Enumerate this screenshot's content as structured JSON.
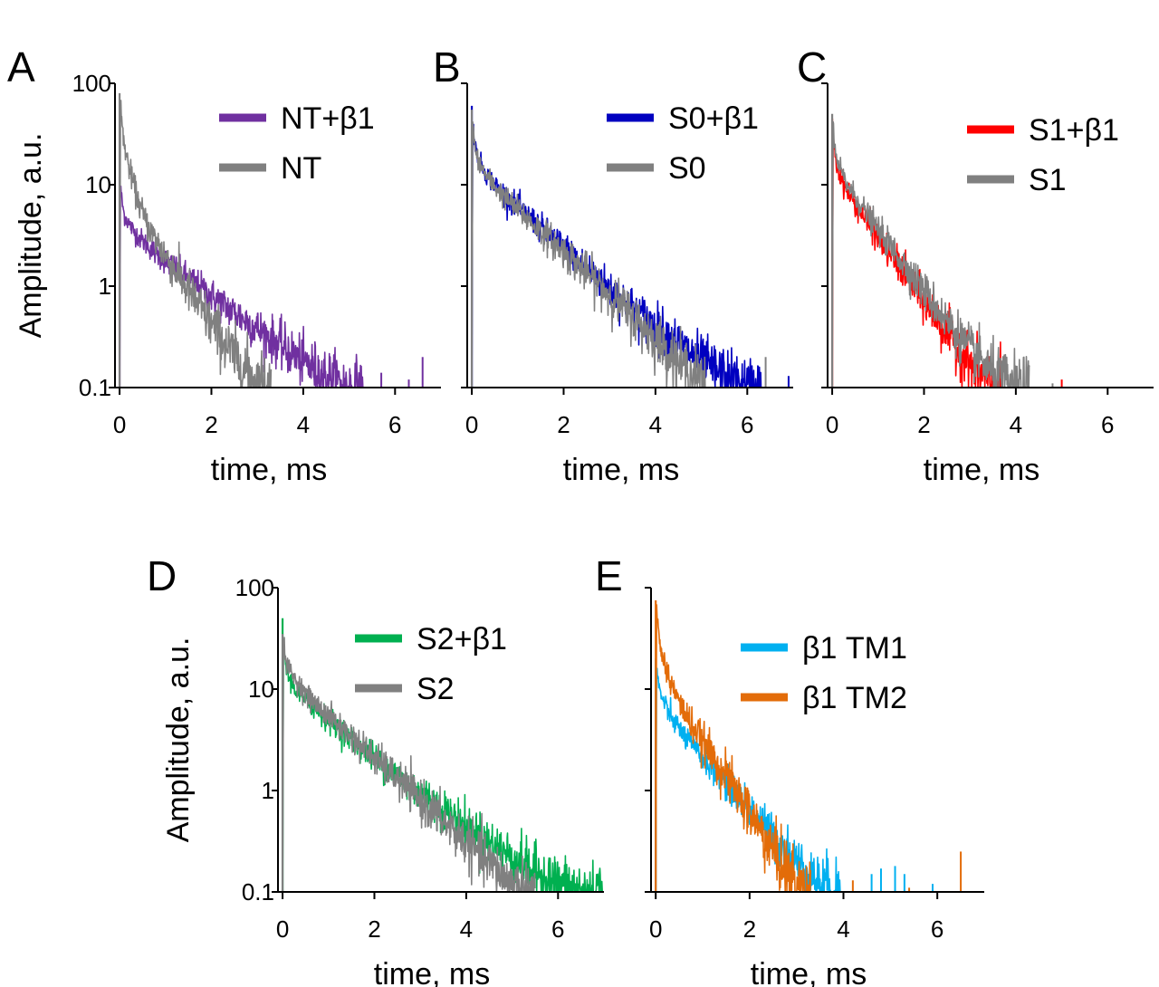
{
  "chart_data": [
    {
      "type": "line",
      "panel_label": "A",
      "xlabel": "time, ms",
      "ylabel": "Amplitude, a.u.",
      "yscale": "log",
      "xlim": [
        -0.1,
        7
      ],
      "ylim": [
        0.1,
        100
      ],
      "xticks": [
        "0",
        "2",
        "4",
        "6"
      ],
      "yticks": [
        "100",
        "10",
        "1",
        "0.1"
      ],
      "legend_position": "top-right",
      "series": [
        {
          "name": "NT+β1",
          "color": "#7030a0",
          "x": [
            0,
            0.05,
            0.1,
            0.3,
            0.5,
            0.8,
            1.2,
            1.6,
            2.0,
            2.5,
            3.0,
            3.5,
            4.0,
            4.5,
            5.0,
            5.3
          ],
          "y": [
            12,
            7,
            5,
            3.5,
            2.8,
            2.1,
            1.5,
            1.1,
            0.8,
            0.55,
            0.38,
            0.26,
            0.18,
            0.13,
            0.1,
            0.1
          ],
          "noise": 0.1,
          "spikes": [
            [
              5.7,
              0.14
            ],
            [
              6.3,
              0.12
            ],
            [
              6.6,
              0.2
            ]
          ]
        },
        {
          "name": "NT",
          "color": "#808080",
          "x": [
            0,
            0.05,
            0.1,
            0.2,
            0.4,
            0.6,
            0.8,
            1.0,
            1.5,
            2.0,
            2.5,
            3.0,
            3.3
          ],
          "y": [
            80,
            40,
            25,
            15,
            7,
            4,
            2.8,
            2,
            0.9,
            0.42,
            0.2,
            0.11,
            0.1
          ],
          "noise": 0.12,
          "spikes": []
        }
      ]
    },
    {
      "type": "line",
      "panel_label": "B",
      "xlabel": "time, ms",
      "ylabel": "",
      "yscale": "log",
      "xlim": [
        -0.1,
        7
      ],
      "ylim": [
        0.1,
        100
      ],
      "xticks": [
        "0",
        "2",
        "4",
        "6"
      ],
      "yticks": [],
      "legend_position": "top-right",
      "series": [
        {
          "name": "S0+β1",
          "color": "#0000c0",
          "x": [
            0,
            0.05,
            0.1,
            0.3,
            0.6,
            1.0,
            1.5,
            2.0,
            2.5,
            3.0,
            3.5,
            4.0,
            4.5,
            5.0,
            5.5,
            6.0,
            6.3
          ],
          "y": [
            60,
            30,
            20,
            13,
            9,
            6,
            3.8,
            2.4,
            1.5,
            0.95,
            0.6,
            0.4,
            0.27,
            0.18,
            0.13,
            0.1,
            0.1
          ],
          "noise": 0.1,
          "spikes": [
            [
              6.9,
              0.13
            ]
          ]
        },
        {
          "name": "S0",
          "color": "#808080",
          "x": [
            0,
            0.05,
            0.1,
            0.3,
            0.6,
            1.0,
            1.5,
            2.0,
            2.5,
            3.0,
            3.5,
            4.0,
            4.5,
            5.0,
            5.1
          ],
          "y": [
            55,
            28,
            19,
            12.5,
            8.5,
            5.7,
            3.5,
            2.2,
            1.35,
            0.82,
            0.5,
            0.3,
            0.18,
            0.11,
            0.1
          ],
          "noise": 0.1,
          "spikes": [
            [
              6.4,
              0.2
            ]
          ]
        }
      ]
    },
    {
      "type": "line",
      "panel_label": "C",
      "xlabel": "time, ms",
      "ylabel": "",
      "yscale": "log",
      "xlim": [
        -0.1,
        7
      ],
      "ylim": [
        0.1,
        100
      ],
      "xticks": [
        "0",
        "2",
        "4",
        "6"
      ],
      "yticks": [],
      "legend_position": "top-right",
      "series": [
        {
          "name": "S1+β1",
          "color": "#ff0000",
          "x": [
            0,
            0.05,
            0.1,
            0.3,
            0.6,
            1.0,
            1.5,
            2.0,
            2.5,
            3.0,
            3.5,
            3.7
          ],
          "y": [
            45,
            22,
            15,
            9,
            5.5,
            3,
            1.5,
            0.7,
            0.35,
            0.17,
            0.1,
            0.1
          ],
          "noise": 0.1,
          "spikes": [
            [
              5.0,
              0.12
            ]
          ]
        },
        {
          "name": "S1",
          "color": "#808080",
          "x": [
            0,
            0.05,
            0.1,
            0.3,
            0.6,
            1.0,
            1.5,
            2.0,
            2.5,
            3.0,
            3.5,
            4.0,
            4.3
          ],
          "y": [
            50,
            25,
            17,
            10.5,
            6.5,
            3.6,
            1.8,
            0.9,
            0.45,
            0.24,
            0.14,
            0.1,
            0.1
          ],
          "noise": 0.1,
          "spikes": [
            [
              4.8,
              0.11
            ]
          ]
        }
      ]
    },
    {
      "type": "line",
      "panel_label": "D",
      "xlabel": "time, ms",
      "ylabel": "Amplitude, a.u.",
      "yscale": "log",
      "xlim": [
        -0.1,
        7
      ],
      "ylim": [
        0.1,
        100
      ],
      "xticks": [
        "0",
        "2",
        "4",
        "6"
      ],
      "yticks": [
        "100",
        "10",
        "1",
        "0.1"
      ],
      "legend_position": "top-right",
      "series": [
        {
          "name": "S2+β1",
          "color": "#00b050",
          "x": [
            0,
            0.05,
            0.1,
            0.3,
            0.6,
            1.0,
            1.5,
            2.0,
            2.5,
            3.0,
            3.5,
            4.0,
            4.5,
            5.0,
            5.5,
            6.0,
            6.5,
            7.0
          ],
          "y": [
            50,
            20,
            14,
            9.5,
            7,
            5,
            3.2,
            2.1,
            1.4,
            0.95,
            0.65,
            0.45,
            0.31,
            0.22,
            0.16,
            0.12,
            0.1,
            0.1
          ],
          "noise": 0.1,
          "spikes": []
        },
        {
          "name": "S2",
          "color": "#808080",
          "x": [
            0,
            0.05,
            0.1,
            0.3,
            0.6,
            1.0,
            1.5,
            2.0,
            2.5,
            3.0,
            3.5,
            4.0,
            4.5,
            5.0,
            5.5
          ],
          "y": [
            35,
            22,
            17,
            12,
            8,
            5.4,
            3.4,
            2.1,
            1.3,
            0.8,
            0.5,
            0.31,
            0.19,
            0.12,
            0.1
          ],
          "noise": 0.1,
          "spikes": []
        }
      ]
    },
    {
      "type": "line",
      "panel_label": "E",
      "xlabel": "time, ms",
      "ylabel": "",
      "yscale": "log",
      "xlim": [
        -0.1,
        7
      ],
      "ylim": [
        0.1,
        100
      ],
      "xticks": [
        "0",
        "2",
        "4",
        "6"
      ],
      "yticks": [],
      "legend_position": "top-right",
      "series": [
        {
          "name": "β1 TM1",
          "color": "#00b0f0",
          "x": [
            0,
            0.05,
            0.1,
            0.3,
            0.6,
            1.0,
            1.5,
            2.0,
            2.5,
            3.0,
            3.5,
            4.0
          ],
          "y": [
            20,
            12,
            9,
            5.5,
            3.5,
            2.1,
            1.2,
            0.65,
            0.35,
            0.2,
            0.12,
            0.1
          ],
          "noise": 0.1,
          "spikes": [
            [
              4.6,
              0.15
            ],
            [
              4.8,
              0.17
            ],
            [
              5.1,
              0.18
            ],
            [
              5.3,
              0.15
            ],
            [
              5.9,
              0.12
            ]
          ]
        },
        {
          "name": "β1 TM2",
          "color": "#e36c09",
          "x": [
            0,
            0.05,
            0.1,
            0.3,
            0.6,
            1.0,
            1.5,
            2.0,
            2.5,
            3.0,
            3.3
          ],
          "y": [
            75,
            40,
            25,
            12,
            6,
            3,
            1.4,
            0.6,
            0.25,
            0.12,
            0.1
          ],
          "noise": 0.12,
          "spikes": [
            [
              4.2,
              0.13
            ],
            [
              5.4,
              0.11
            ],
            [
              6.5,
              0.25
            ]
          ]
        }
      ]
    }
  ]
}
